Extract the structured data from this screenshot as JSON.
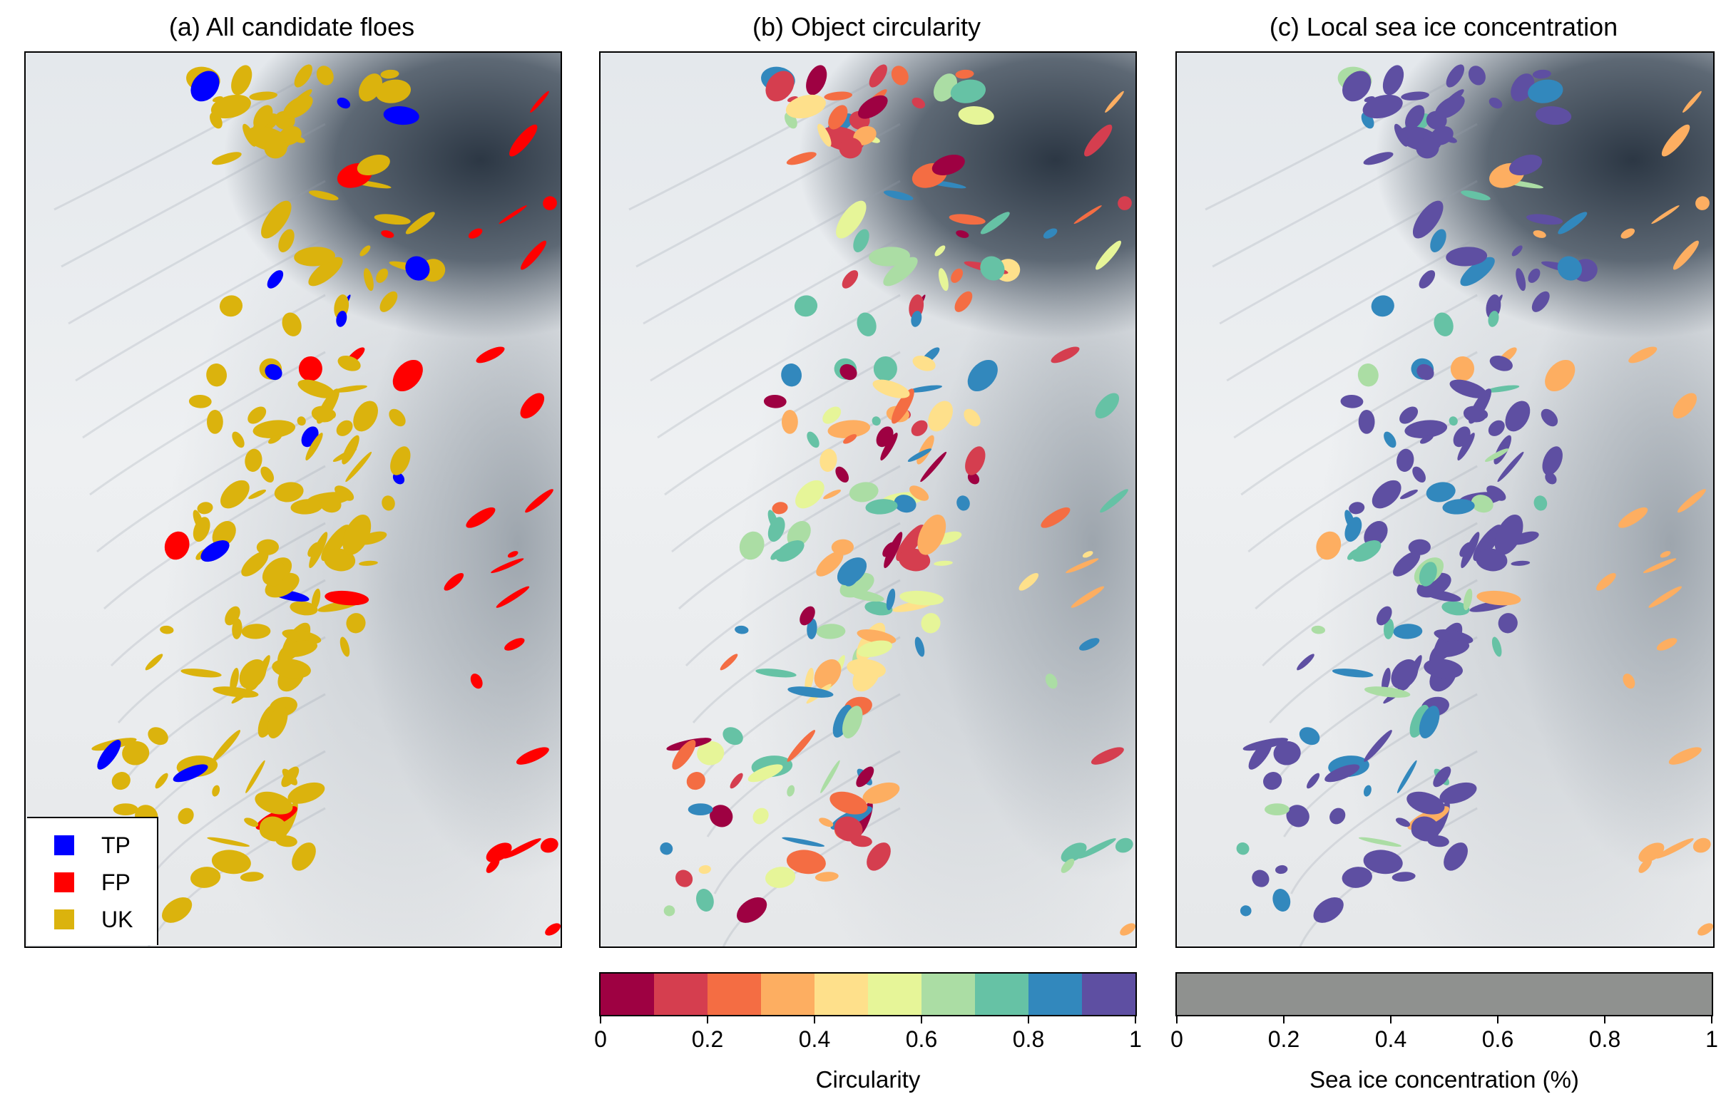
{
  "panels": [
    {
      "title": "(a) All candidate floes"
    },
    {
      "title": "(b) Object circularity"
    },
    {
      "title": "(c) Local sea ice concentration"
    }
  ],
  "legend": [
    {
      "label": "TP",
      "color": "#0000ff"
    },
    {
      "label": "FP",
      "color": "#ff0000"
    },
    {
      "label": "UK",
      "color": "#dbb30d"
    }
  ],
  "colorbars": [
    {
      "label": "Circularity",
      "ticks": [
        "0",
        "0.2",
        "0.4",
        "0.6",
        "0.8",
        "1"
      ],
      "colors": [
        "#9e0142",
        "#d53e4f",
        "#f46d43",
        "#fdae61",
        "#fee08b",
        "#e6f598",
        "#abdda4",
        "#66c2a5",
        "#3288bd",
        "#5e4fa2"
      ]
    },
    {
      "label": "Sea ice concentration (%)",
      "ticks": [
        "0",
        "0.2",
        "0.4",
        "0.6",
        "0.8",
        "1"
      ],
      "colors": [
        "#8f918f"
      ]
    }
  ],
  "palettes": {
    "b": [
      "#9e0142",
      "#d53e4f",
      "#f46d43",
      "#fdae61",
      "#fee08b",
      "#e6f598",
      "#abdda4",
      "#66c2a5",
      "#3288bd"
    ],
    "c": [
      "#5e4fa2",
      "#3288bd",
      "#66c2a5",
      "#abdda4",
      "#fdae61"
    ]
  }
}
